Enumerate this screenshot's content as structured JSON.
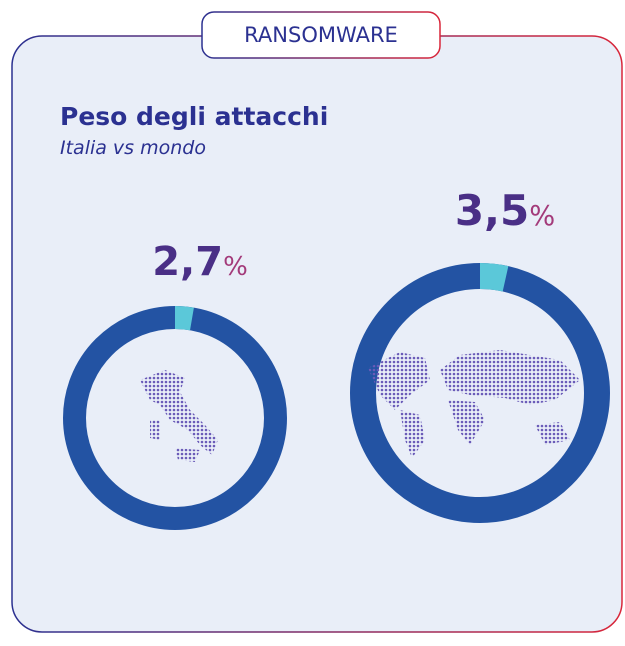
{
  "tag": "RANSOMWARE",
  "header": {
    "title": "Peso degli attacchi",
    "subtitle": "Italia vs mondo"
  },
  "chart_data": [
    {
      "type": "pie",
      "values": [
        2.7
      ],
      "value_labels": [
        "2,7%"
      ],
      "color": "#5bc8d9",
      "track_color": "#2353a3"
    },
    {
      "type": "pie",
      "values": [
        3.5
      ],
      "value_labels": [
        "3,5%"
      ],
      "color": "#5bc8d9",
      "track_color": "#2353a3"
    }
  ]
}
